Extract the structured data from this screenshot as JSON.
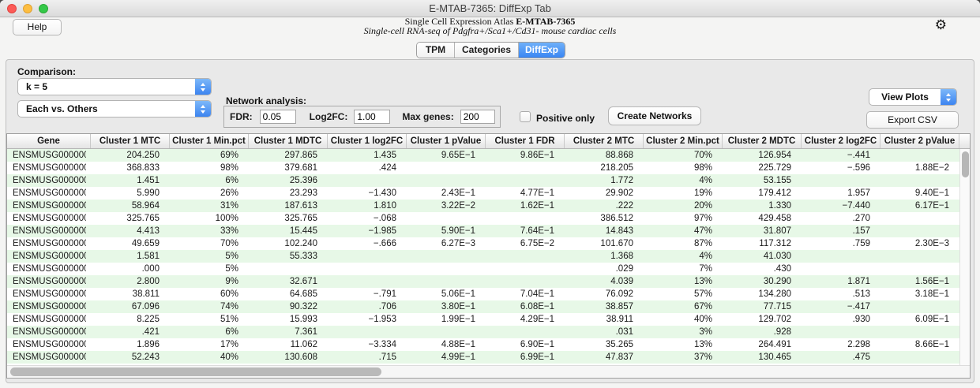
{
  "window": {
    "title": "E-MTAB-7365: DiffExp Tab"
  },
  "header": {
    "help_label": "Help",
    "atlas_prefix": "Single Cell Expression Atlas ",
    "atlas_accession": "E-MTAB-7365",
    "study_title": "Single-cell RNA-seq of Pdgfra+/Sca1+/Cd31- mouse cardiac cells"
  },
  "icons": {
    "gear": "⚙"
  },
  "tabs": [
    {
      "label": "TPM",
      "active": false
    },
    {
      "label": "Categories",
      "active": false
    },
    {
      "label": "DiffExp",
      "active": true
    }
  ],
  "controls": {
    "comparison_label": "Comparison:",
    "k_select_value": "k = 5",
    "vs_select_value": "Each vs. Others",
    "network_label": "Network analysis:",
    "fdr_label": "FDR:",
    "fdr_value": "0.05",
    "log2fc_label": "Log2FC:",
    "log2fc_value": "1.00",
    "max_genes_label": "Max genes:",
    "max_genes_value": "200",
    "positive_only_label": "Positive only",
    "positive_only_checked": false,
    "create_networks_label": "Create Networks",
    "view_plots_label": "View Plots",
    "export_csv_label": "Export CSV"
  },
  "colors": {
    "accent_blue": "#3f8ef5",
    "row_stripe_green": "#e7f8e7",
    "traffic_close": "#fc5b57",
    "traffic_minimize": "#fdbe41",
    "traffic_zoom": "#34c848"
  },
  "table": {
    "columns": [
      "Gene",
      "Cluster 1 MTC",
      "Cluster 1 Min.pct",
      "Cluster 1 MDTC",
      "Cluster 1 log2FC",
      "Cluster 1 pValue",
      "Cluster 1 FDR",
      "Cluster 2 MTC",
      "Cluster 2 Min.pct",
      "Cluster 2 MDTC",
      "Cluster 2 log2FC",
      "Cluster 2 pValue"
    ],
    "rows": [
      [
        "ENSMUSG0000000...",
        "204.250",
        "69%",
        "297.865",
        "1.435",
        "9.65E−1",
        "9.86E−1",
        "88.868",
        "70%",
        "126.954",
        "−.441",
        ""
      ],
      [
        "ENSMUSG0000000...",
        "368.833",
        "98%",
        "379.681",
        ".424",
        "",
        "",
        "218.205",
        "98%",
        "225.729",
        "−.596",
        "1.88E−2"
      ],
      [
        "ENSMUSG0000000...",
        "1.451",
        "6%",
        "25.396",
        "",
        "",
        "",
        "1.772",
        "4%",
        "53.155",
        "",
        ""
      ],
      [
        "ENSMUSG0000000...",
        "5.990",
        "26%",
        "23.293",
        "−1.430",
        "2.43E−1",
        "4.77E−1",
        "29.902",
        "19%",
        "179.412",
        "1.957",
        "9.40E−1"
      ],
      [
        "ENSMUSG0000000...",
        "58.964",
        "31%",
        "187.613",
        "1.810",
        "3.22E−2",
        "1.62E−1",
        ".222",
        "20%",
        "1.330",
        "−7.440",
        "6.17E−1"
      ],
      [
        "ENSMUSG0000000...",
        "325.765",
        "100%",
        "325.765",
        "−.068",
        "",
        "",
        "386.512",
        "97%",
        "429.458",
        ".270",
        ""
      ],
      [
        "ENSMUSG0000000...",
        "4.413",
        "33%",
        "15.445",
        "−1.985",
        "5.90E−1",
        "7.64E−1",
        "14.843",
        "47%",
        "31.807",
        ".157",
        ""
      ],
      [
        "ENSMUSG0000000...",
        "49.659",
        "70%",
        "102.240",
        "−.666",
        "6.27E−3",
        "6.75E−2",
        "101.670",
        "87%",
        "117.312",
        ".759",
        "2.30E−3"
      ],
      [
        "ENSMUSG0000000...",
        "1.581",
        "5%",
        "55.333",
        "",
        "",
        "",
        "1.368",
        "4%",
        "41.030",
        "",
        ""
      ],
      [
        "ENSMUSG0000000...",
        ".000",
        "5%",
        "",
        "",
        "",
        "",
        ".029",
        "7%",
        ".430",
        "",
        ""
      ],
      [
        "ENSMUSG0000000...",
        "2.800",
        "9%",
        "32.671",
        "",
        "",
        "",
        "4.039",
        "13%",
        "30.290",
        "1.871",
        "1.56E−1"
      ],
      [
        "ENSMUSG0000000...",
        "38.811",
        "60%",
        "64.685",
        "−.791",
        "5.06E−1",
        "7.04E−1",
        "76.092",
        "57%",
        "134.280",
        ".513",
        "3.18E−1"
      ],
      [
        "ENSMUSG0000000...",
        "67.096",
        "74%",
        "90.322",
        ".706",
        "3.80E−1",
        "6.08E−1",
        "38.857",
        "67%",
        "77.715",
        "−.417",
        ""
      ],
      [
        "ENSMUSG0000000...",
        "8.225",
        "51%",
        "15.993",
        "−1.953",
        "1.99E−1",
        "4.29E−1",
        "38.911",
        "40%",
        "129.702",
        ".930",
        "6.09E−1"
      ],
      [
        "ENSMUSG0000000...",
        ".421",
        "6%",
        "7.361",
        "",
        "",
        "",
        ".031",
        "3%",
        ".928",
        "",
        ""
      ],
      [
        "ENSMUSG0000000...",
        "1.896",
        "17%",
        "11.062",
        "−3.334",
        "4.88E−1",
        "6.90E−1",
        "35.265",
        "13%",
        "264.491",
        "2.298",
        "8.66E−1"
      ],
      [
        "ENSMUSG0000000...",
        "52.243",
        "40%",
        "130.608",
        ".715",
        "4.99E−1",
        "6.99E−1",
        "47.837",
        "37%",
        "130.465",
        ".475",
        ""
      ]
    ]
  }
}
